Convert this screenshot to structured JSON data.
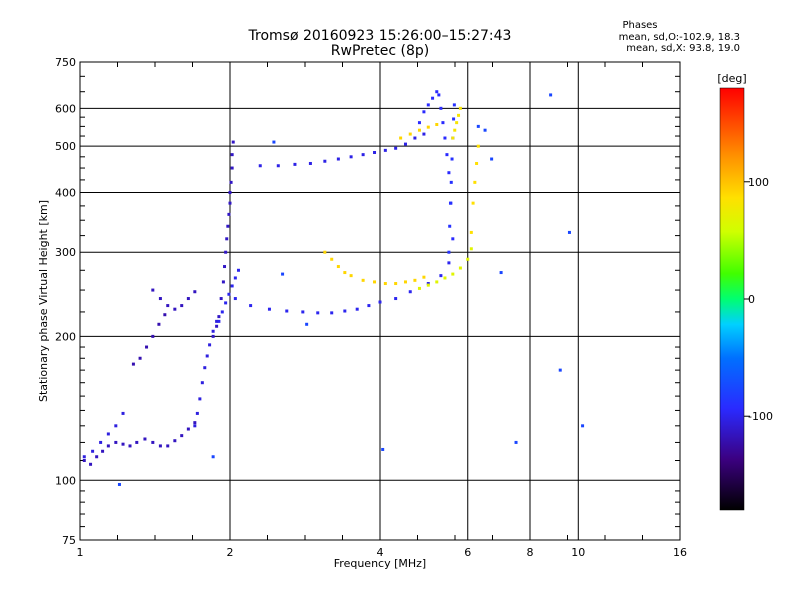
{
  "header": {
    "title_line1": "Tromsø 20160923 15:26:00–15:27:43",
    "title_line2": "RwPretec (8p)",
    "phase_title": "Phases",
    "phase_o": "mean, sd,O:-102.9, 18.3",
    "phase_x": "mean, sd,X:  93.8, 19.0"
  },
  "colorbar": {
    "label": "[deg]",
    "tick_labels": [
      "100",
      "0",
      "-100"
    ],
    "ticks": [
      100,
      0,
      -100
    ],
    "range": [
      -180,
      180
    ]
  },
  "chart_data": {
    "type": "scatter",
    "title": "Tromsø 20160923 15:26:00–15:27:43",
    "subtitle": "RwPretec (8p)",
    "xlabel": "Frequency [MHz]",
    "ylabel": "Stationary phase Virtual Height [km]",
    "xscale": "log2",
    "yscale": "log",
    "xlim": [
      1,
      16
    ],
    "ylim": [
      75,
      750
    ],
    "grid": true,
    "x_ticks": [
      1,
      2,
      4,
      6,
      8,
      10,
      16
    ],
    "x_tick_labels": [
      "1",
      "2",
      "4",
      "6",
      "8",
      "10",
      "16"
    ],
    "y_ticks": [
      75,
      100,
      200,
      300,
      400,
      500,
      600,
      750
    ],
    "y_tick_labels": [
      "75",
      "100",
      "200",
      "300",
      "400",
      "500",
      "600",
      "750"
    ],
    "colorbar_label": "[deg]",
    "series": [
      {
        "x": [
          1.02,
          1.05,
          1.08,
          1.11,
          1.14,
          1.18,
          1.22,
          1.26,
          1.3,
          1.35,
          1.4,
          1.45,
          1.5,
          1.55,
          1.6,
          1.65,
          1.7
        ],
        "y": [
          110,
          108,
          112,
          115,
          118,
          120,
          119,
          118,
          120,
          122,
          120,
          118,
          118,
          121,
          124,
          128,
          132
        ],
        "phase": -120
      },
      {
        "x": [
          1.02,
          1.06,
          1.1,
          1.14,
          1.18,
          1.22
        ],
        "y": [
          112,
          115,
          120,
          125,
          130,
          138
        ],
        "phase": -110
      },
      {
        "x": [
          1.28,
          1.32,
          1.36,
          1.4,
          1.44,
          1.48
        ],
        "y": [
          175,
          180,
          190,
          200,
          212,
          222
        ],
        "phase": -125
      },
      {
        "x": [
          1.4,
          1.45,
          1.5,
          1.55,
          1.6,
          1.65,
          1.7
        ],
        "y": [
          250,
          240,
          232,
          228,
          232,
          240,
          248
        ],
        "phase": -120
      },
      {
        "x": [
          1.7,
          1.72,
          1.74,
          1.76,
          1.78,
          1.8,
          1.82,
          1.85,
          1.88
        ],
        "y": [
          130,
          138,
          148,
          160,
          172,
          182,
          192,
          205,
          215
        ],
        "phase": -110
      },
      {
        "x": [
          1.85,
          1.88,
          1.9,
          1.92,
          1.94,
          1.95,
          1.96,
          1.97,
          1.98,
          1.99,
          2.0,
          2.0,
          2.01,
          2.02,
          2.02,
          2.03
        ],
        "y": [
          200,
          210,
          220,
          240,
          260,
          280,
          300,
          320,
          340,
          360,
          380,
          400,
          420,
          450,
          480,
          510
        ],
        "phase": -118
      },
      {
        "x": [
          1.9,
          1.93,
          1.96,
          1.99,
          2.02,
          2.05,
          2.08
        ],
        "y": [
          215,
          225,
          235,
          245,
          255,
          265,
          275
        ],
        "phase": -105
      },
      {
        "x": [
          2.05,
          2.2,
          2.4,
          2.6,
          2.8,
          3.0,
          3.2,
          3.4,
          3.6,
          3.8,
          4.0,
          4.3,
          4.6,
          5.0,
          5.3,
          5.5
        ],
        "y": [
          240,
          232,
          228,
          226,
          225,
          224,
          224,
          226,
          228,
          232,
          236,
          240,
          248,
          258,
          268,
          285
        ],
        "phase": -105
      },
      {
        "x": [
          2.3,
          2.5,
          2.7,
          2.9,
          3.1,
          3.3,
          3.5,
          3.7,
          3.9,
          4.1,
          4.3,
          4.5,
          4.7,
          4.9
        ],
        "y": [
          455,
          455,
          458,
          460,
          465,
          470,
          475,
          480,
          485,
          490,
          495,
          505,
          520,
          530
        ],
        "phase": -108
      },
      {
        "x": [
          4.8,
          4.9,
          5.0,
          5.1,
          5.2,
          5.25,
          5.3,
          5.35,
          5.4,
          5.45,
          5.5,
          5.55,
          5.6
        ],
        "y": [
          560,
          590,
          610,
          630,
          650,
          640,
          600,
          560,
          520,
          480,
          440,
          380,
          320
        ],
        "phase": -100
      },
      {
        "x": [
          5.5,
          5.52,
          5.54,
          5.56,
          5.58,
          5.6,
          5.62,
          5.64
        ],
        "y": [
          300,
          340,
          380,
          420,
          470,
          520,
          570,
          610
        ],
        "phase": -95
      },
      {
        "x": [
          3.1,
          3.2,
          3.3,
          3.4,
          3.5,
          3.7,
          3.9,
          4.1,
          4.3,
          4.5,
          4.7,
          4.9
        ],
        "y": [
          300,
          290,
          280,
          272,
          268,
          262,
          260,
          258,
          258,
          260,
          262,
          266
        ],
        "phase": 95
      },
      {
        "x": [
          4.8,
          5.0,
          5.2,
          5.4,
          5.6,
          5.8,
          6.0,
          6.1
        ],
        "y": [
          252,
          256,
          260,
          265,
          270,
          278,
          290,
          305
        ],
        "phase": 70
      },
      {
        "x": [
          5.6,
          5.65,
          5.7,
          5.75,
          5.8
        ],
        "y": [
          520,
          540,
          560,
          580,
          600
        ],
        "phase": 85
      },
      {
        "x": [
          6.1,
          6.15,
          6.2,
          6.25,
          6.3
        ],
        "y": [
          330,
          380,
          420,
          460,
          500
        ],
        "phase": 90
      },
      {
        "x": [
          4.4,
          4.6,
          4.8,
          5.0,
          5.2
        ],
        "y": [
          520,
          530,
          540,
          548,
          555
        ],
        "phase": 95
      },
      {
        "x": [
          6.3,
          6.5,
          6.7,
          7.0,
          7.5,
          8.8,
          9.2,
          9.6,
          10.2,
          2.55,
          1.2,
          4.05,
          1.85,
          2.85,
          2.45
        ],
        "y": [
          550,
          540,
          470,
          272,
          120,
          640,
          170,
          330,
          130,
          270,
          98,
          116,
          112,
          212,
          510
        ],
        "phase": -80
      }
    ]
  }
}
